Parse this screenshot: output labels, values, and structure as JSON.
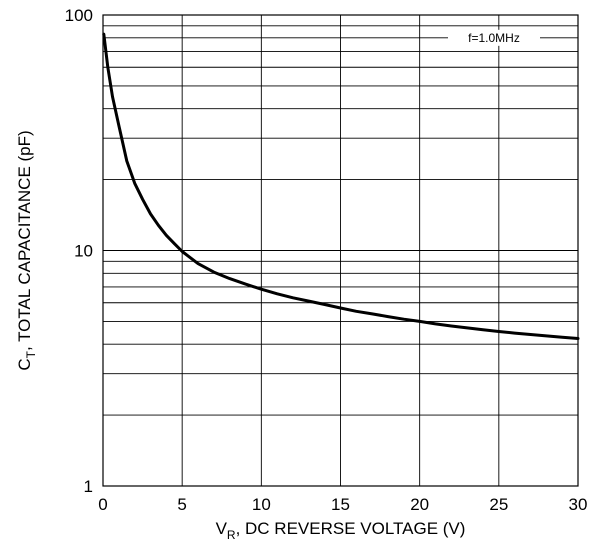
{
  "chart_data": {
    "type": "line",
    "xlabel_parts": [
      "V",
      "R",
      ", DC REVERSE VOLTAGE (V)"
    ],
    "ylabel_parts": [
      "C",
      "T",
      ", TOTAL CAPACITANCE (pF)"
    ],
    "annotation": "f=1.0MHz",
    "xlim": [
      0,
      30
    ],
    "ylim": [
      1,
      100
    ],
    "y_scale": "log",
    "grid": true,
    "x_ticks": [
      0,
      5,
      10,
      15,
      20,
      25,
      30
    ],
    "x_tick_labels": [
      "0",
      "5",
      "10",
      "15",
      "20",
      "25",
      "30"
    ],
    "y_ticks": [
      1,
      10,
      100
    ],
    "y_tick_labels": [
      "1",
      "10",
      "100"
    ],
    "series": [
      {
        "x": [
          0.05,
          0.3,
          0.6,
          1.0,
          1.5,
          2.0,
          2.5,
          3.0,
          3.5,
          4.0,
          4.5,
          5.0,
          6.0,
          7.0,
          8.0,
          9.0,
          10.0,
          11.0,
          12.0,
          13.0,
          14.0,
          15.0,
          16.0,
          17.0,
          18.0,
          19.0,
          20.0,
          21.0,
          22.0,
          23.0,
          24.0,
          25.0,
          26.0,
          27.0,
          28.0,
          29.0,
          30.0
        ],
        "y": [
          83,
          60,
          45,
          34,
          24,
          19.3,
          16.5,
          14.3,
          12.8,
          11.6,
          10.7,
          9.9,
          8.8,
          8.1,
          7.6,
          7.2,
          6.85,
          6.55,
          6.3,
          6.1,
          5.9,
          5.7,
          5.52,
          5.38,
          5.24,
          5.11,
          5.0,
          4.88,
          4.78,
          4.69,
          4.61,
          4.53,
          4.46,
          4.4,
          4.34,
          4.28,
          4.23
        ]
      }
    ],
    "colors": {
      "curve": "#000000",
      "grid": "#000000",
      "background": "#ffffff"
    }
  }
}
